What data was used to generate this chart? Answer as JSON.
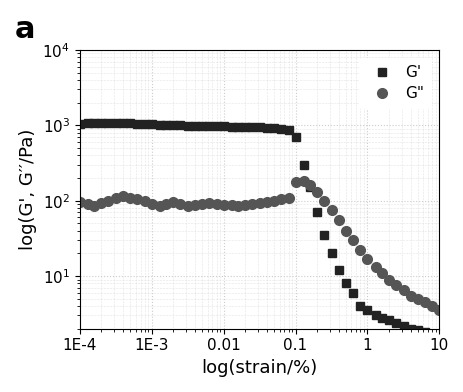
{
  "title_label": "a",
  "xlabel": "log(strain/%)",
  "ylabel": "log(G', G′′/Pa)",
  "xlim": [
    0.0001,
    10
  ],
  "ylim": [
    2,
    10000.0
  ],
  "background_color": "#ffffff",
  "G_prime_x": [
    0.0001,
    0.00013,
    0.00016,
    0.0002,
    0.00025,
    0.00032,
    0.0004,
    0.0005,
    0.00063,
    0.0008,
    0.001,
    0.0013,
    0.0016,
    0.002,
    0.0025,
    0.0032,
    0.004,
    0.005,
    0.0063,
    0.008,
    0.01,
    0.013,
    0.016,
    0.02,
    0.025,
    0.032,
    0.04,
    0.05,
    0.063,
    0.08,
    0.1,
    0.13,
    0.16,
    0.2,
    0.25,
    0.32,
    0.4,
    0.5,
    0.63,
    0.8,
    1.0,
    1.3,
    1.6,
    2.0,
    2.5,
    3.2,
    4.0,
    5.0,
    6.3,
    8.0,
    10.0
  ],
  "G_prime_y": [
    1050,
    1060,
    1070,
    1080,
    1090,
    1080,
    1070,
    1060,
    1050,
    1040,
    1030,
    1020,
    1010,
    1000,
    1000,
    990,
    990,
    985,
    980,
    975,
    970,
    965,
    960,
    955,
    950,
    940,
    930,
    910,
    890,
    860,
    700,
    300,
    150,
    70,
    35,
    20,
    12,
    8,
    6,
    4,
    3.5,
    3.0,
    2.8,
    2.6,
    2.4,
    2.2,
    2.0,
    1.9,
    1.8,
    1.7,
    1.6
  ],
  "G_double_prime_x": [
    0.0001,
    0.00013,
    0.00016,
    0.0002,
    0.00025,
    0.00032,
    0.0004,
    0.0005,
    0.00063,
    0.0008,
    0.001,
    0.0013,
    0.0016,
    0.002,
    0.0025,
    0.0032,
    0.004,
    0.005,
    0.0063,
    0.008,
    0.01,
    0.013,
    0.016,
    0.02,
    0.025,
    0.032,
    0.04,
    0.05,
    0.063,
    0.08,
    0.1,
    0.13,
    0.16,
    0.2,
    0.25,
    0.32,
    0.4,
    0.5,
    0.63,
    0.8,
    1.0,
    1.3,
    1.6,
    2.0,
    2.5,
    3.2,
    4.0,
    5.0,
    6.3,
    8.0,
    10.0
  ],
  "G_double_prime_y": [
    95,
    90,
    85,
    92,
    100,
    110,
    115,
    110,
    105,
    100,
    90,
    85,
    90,
    95,
    90,
    85,
    88,
    90,
    92,
    90,
    88,
    87,
    86,
    88,
    90,
    92,
    95,
    100,
    105,
    110,
    175,
    180,
    160,
    130,
    100,
    75,
    55,
    40,
    30,
    22,
    17,
    13,
    11,
    9,
    7.5,
    6.5,
    5.5,
    5.0,
    4.5,
    4.0,
    3.5
  ],
  "G_prime_color": "#222222",
  "G_double_prime_color": "#555555",
  "marker_size_prime": 6,
  "marker_size_double": 7,
  "grid_color": "#cccccc",
  "font_size_label": 13,
  "font_size_tick": 11,
  "font_size_title": 22
}
